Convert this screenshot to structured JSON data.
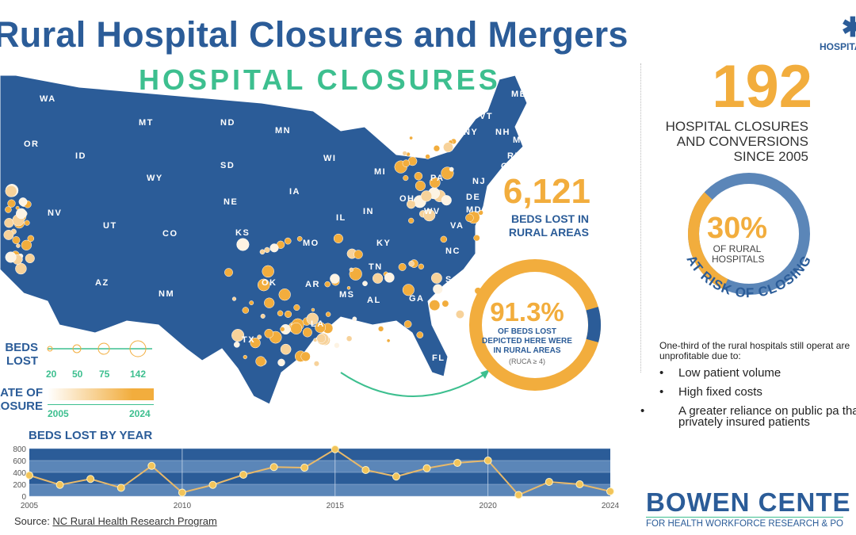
{
  "title": "Rural Hospital Closures and Mergers",
  "subtitle": "HOSPITAL CLOSURES",
  "logo_text": "HOSPITAL",
  "colors": {
    "navy": "#2b5c98",
    "gold": "#f2ad3d",
    "green": "#3dbf8f"
  },
  "map": {
    "state_labels": [
      "WA",
      "OR",
      "ID",
      "MT",
      "WY",
      "NV",
      "UT",
      "CO",
      "AZ",
      "NM",
      "ND",
      "SD",
      "NE",
      "KS",
      "OK",
      "TX",
      "MN",
      "IA",
      "MO",
      "AR",
      "LA",
      "WI",
      "IL",
      "MS",
      "MI",
      "IN",
      "KY",
      "TN",
      "AL",
      "OH",
      "WV",
      "VA",
      "NC",
      "SC",
      "GA",
      "FL",
      "PA",
      "NY",
      "VT",
      "NH",
      "ME",
      "MA",
      "RI",
      "CT",
      "NJ",
      "DE",
      "MD"
    ]
  },
  "legend": {
    "beds_label": "BEDS LOST",
    "beds_values": [
      "20",
      "50",
      "75",
      "142"
    ],
    "date_label": "DATE OF CLOSURE",
    "date_start": "2005",
    "date_end": "2024"
  },
  "stats": {
    "closures_count": "192",
    "closures_text": "HOSPITAL CLOSURES AND CONVERSIONS SINCE 2005",
    "beds_lost": "6,121",
    "beds_lost_text": "BEDS LOST IN RURAL AREAS",
    "rural_pct": "91.3%",
    "rural_pct_value": 91.3,
    "rural_pct_text": "OF BEDS LOST DEPICTED HERE WERE IN RURAL AREAS",
    "ruca_note": "(RUCA ≥ 4)",
    "risk_pct": "30%",
    "risk_pct_value": 30,
    "risk_desc": "OF RURAL HOSPITALS",
    "risk_arc_text": "AT RISK OF CLOSING"
  },
  "reasons": {
    "intro": "One-third of the rural hospitals still operat are unprofitable due to:",
    "items": [
      "Low patient volume",
      "High fixed costs",
      "A greater reliance on public pa than privately insured patients"
    ]
  },
  "org": {
    "name": "BOWEN CENTE",
    "tagline": "FOR HEALTH WORKFORCE RESEARCH & PO"
  },
  "source": {
    "prefix": "Source: ",
    "link": "NC Rural Health Research Program"
  },
  "chart_data": {
    "type": "line",
    "title": "BEDS LOST BY YEAR",
    "x": [
      2005,
      2006,
      2007,
      2008,
      2009,
      2010,
      2011,
      2012,
      2013,
      2014,
      2015,
      2016,
      2017,
      2018,
      2019,
      2020,
      2021,
      2022,
      2023,
      2024
    ],
    "values": [
      350,
      190,
      290,
      140,
      510,
      60,
      190,
      360,
      490,
      480,
      790,
      440,
      330,
      470,
      560,
      600,
      20,
      240,
      200,
      80
    ],
    "xticks": [
      "2005",
      "2010",
      "2015",
      "2020",
      "2024"
    ],
    "yticks": [
      "0",
      "200",
      "400",
      "600",
      "800"
    ],
    "ylim": [
      0,
      800
    ],
    "grid": true
  }
}
